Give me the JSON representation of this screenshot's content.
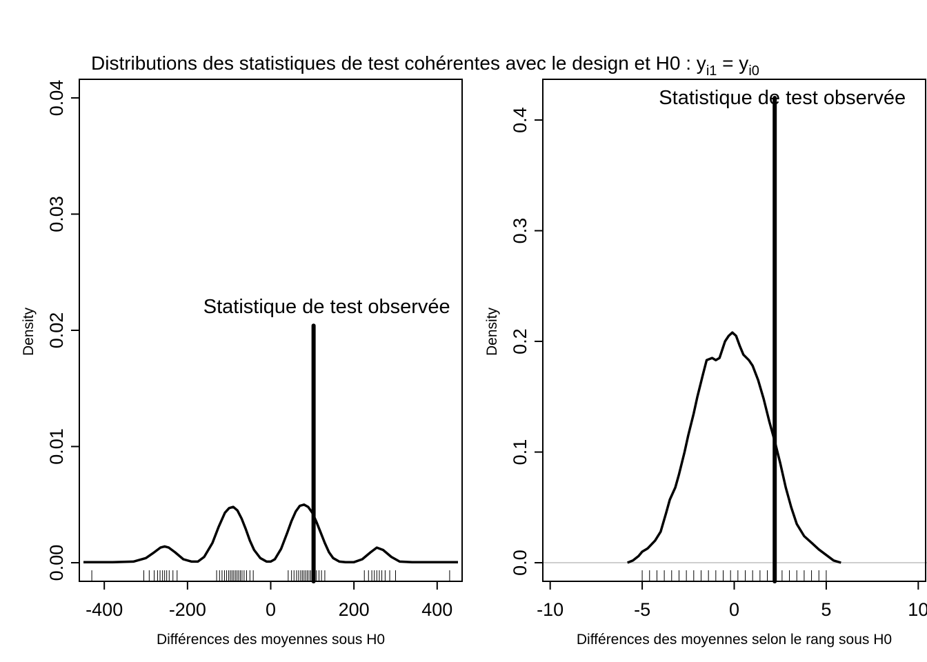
{
  "title": {
    "prefix": "Distributions des statistiques de test cohérentes avec le design et H0 : y",
    "sub1": "i1",
    "eq": " = y",
    "sub2": "i0"
  },
  "chart_data": [
    {
      "type": "line",
      "xlabel": "Différences des moyennes sous H0",
      "ylabel": "Density",
      "xlim": [
        -460,
        460
      ],
      "ylim": [
        -0.0016,
        0.0416
      ],
      "xticks": [
        -400,
        -200,
        0,
        200,
        400
      ],
      "xtick_labels": [
        "-400",
        "-200",
        "0",
        "200",
        "400"
      ],
      "yticks": [
        0.0,
        0.01,
        0.02,
        0.03,
        0.04
      ],
      "ytick_labels": [
        "0.00",
        "0.01",
        "0.02",
        "0.03",
        "0.04"
      ],
      "zero_line": false,
      "observed": {
        "x": 103,
        "y_top": 0.0204,
        "label": "Statistique de test observée"
      },
      "density": {
        "x": [
          -450,
          -380,
          -330,
          -300,
          -280,
          -265,
          -255,
          -245,
          -230,
          -210,
          -190,
          -175,
          -160,
          -140,
          -125,
          -110,
          -100,
          -90,
          -80,
          -70,
          -60,
          -50,
          -40,
          -25,
          -10,
          0,
          10,
          25,
          40,
          50,
          60,
          70,
          80,
          90,
          100,
          110,
          120,
          130,
          140,
          150,
          165,
          180,
          200,
          220,
          240,
          255,
          270,
          290,
          310,
          340,
          400,
          450
        ],
        "y": [
          5e-05,
          5e-05,
          0.0001,
          0.0004,
          0.0009,
          0.0013,
          0.0014,
          0.0013,
          0.0009,
          0.0003,
          0.0001,
          0.0001,
          0.0005,
          0.0017,
          0.0031,
          0.0043,
          0.0047,
          0.0048,
          0.0045,
          0.0038,
          0.0029,
          0.0019,
          0.0011,
          0.0004,
          0.0001,
          0.0001,
          0.0003,
          0.0012,
          0.0026,
          0.0036,
          0.0044,
          0.0049,
          0.005,
          0.0048,
          0.0043,
          0.0035,
          0.0026,
          0.0017,
          0.0009,
          0.0004,
          0.0001,
          5e-05,
          5e-05,
          0.0003,
          0.0009,
          0.0013,
          0.0011,
          0.0005,
          0.0001,
          5e-05,
          5e-05,
          5e-05
        ]
      },
      "rug": [
        -430,
        -305,
        -292,
        -280,
        -272,
        -266,
        -260,
        -255,
        -250,
        -244,
        -235,
        -225,
        -130,
        -123,
        -117,
        -111,
        -106,
        -101,
        -97,
        -93,
        -89,
        -85,
        -81,
        -77,
        -73,
        -69,
        -64,
        -58,
        -50,
        -42,
        42,
        50,
        56,
        62,
        67,
        72,
        76,
        80,
        84,
        88,
        92,
        96,
        100,
        105,
        110,
        116,
        122,
        130,
        225,
        235,
        243,
        249,
        255,
        261,
        267,
        275,
        286,
        300,
        430
      ]
    },
    {
      "type": "line",
      "xlabel": "Différences des moyennes selon le rang sous H0",
      "ylabel": "Density",
      "xlim": [
        -10.4,
        10.4
      ],
      "ylim": [
        -0.0168,
        0.4368
      ],
      "xticks": [
        -10,
        -5,
        0,
        5,
        10
      ],
      "xtick_labels": [
        "-10",
        "-5",
        "0",
        "5",
        "10"
      ],
      "yticks": [
        0.0,
        0.1,
        0.2,
        0.3,
        0.4
      ],
      "ytick_labels": [
        "0.0",
        "0.1",
        "0.2",
        "0.3",
        "0.4"
      ],
      "zero_line": true,
      "observed": {
        "x": 2.2,
        "y_top": 0.42,
        "label": "Statistique de test observée"
      },
      "density": {
        "x": [
          -5.8,
          -5.5,
          -5.2,
          -5.0,
          -4.7,
          -4.3,
          -4.0,
          -3.7,
          -3.5,
          -3.2,
          -3.0,
          -2.7,
          -2.5,
          -2.2,
          -2.0,
          -1.7,
          -1.5,
          -1.2,
          -1.0,
          -0.8,
          -0.6,
          -0.5,
          -0.3,
          -0.1,
          0.1,
          0.3,
          0.5,
          0.8,
          1.0,
          1.3,
          1.6,
          1.9,
          2.2,
          2.5,
          2.8,
          3.1,
          3.4,
          3.8,
          4.2,
          4.6,
          5.0,
          5.4,
          5.8
        ],
        "y": [
          0.0,
          0.002,
          0.006,
          0.01,
          0.013,
          0.02,
          0.028,
          0.045,
          0.057,
          0.068,
          0.08,
          0.1,
          0.115,
          0.135,
          0.15,
          0.17,
          0.183,
          0.185,
          0.183,
          0.185,
          0.195,
          0.2,
          0.205,
          0.208,
          0.205,
          0.196,
          0.188,
          0.183,
          0.178,
          0.165,
          0.148,
          0.128,
          0.11,
          0.09,
          0.068,
          0.05,
          0.035,
          0.024,
          0.018,
          0.012,
          0.007,
          0.002,
          0.0
        ],
        "line_ends": [
          -5.8,
          5.8
        ]
      },
      "rug": [
        -5.0,
        -4.6,
        -4.2,
        -3.8,
        -3.4,
        -3.0,
        -2.6,
        -2.2,
        -1.8,
        -1.4,
        -1.0,
        -0.6,
        -0.2,
        0.2,
        0.6,
        1.0,
        1.4,
        1.8,
        2.2,
        2.6,
        3.0,
        3.4,
        3.8,
        4.2,
        4.6,
        5.0
      ]
    }
  ]
}
